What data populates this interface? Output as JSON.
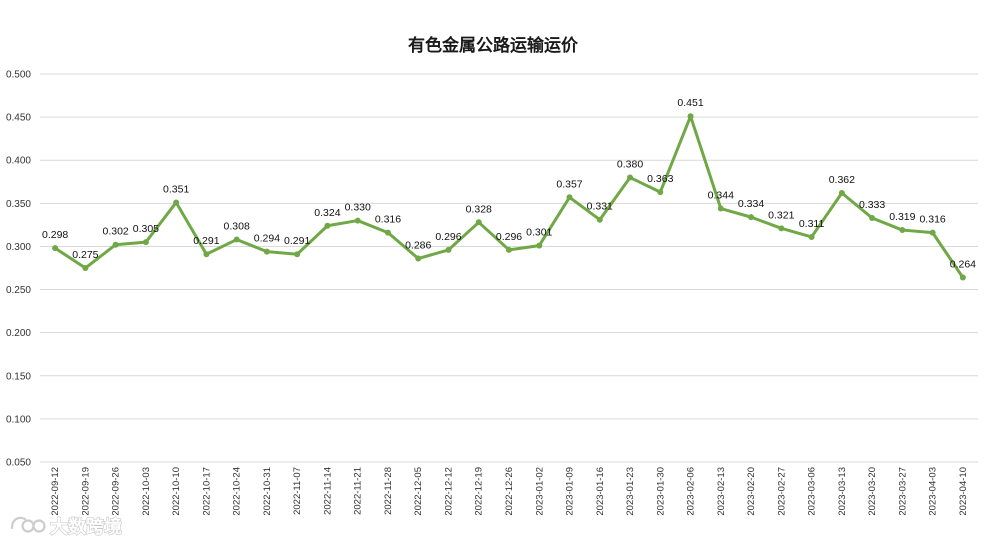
{
  "chart_data": {
    "type": "line",
    "title": "有色金属公路运输运价",
    "xlabel": "",
    "ylabel": "",
    "ylim": [
      0.05,
      0.5
    ],
    "yticks": [
      "0.050",
      "0.100",
      "0.150",
      "0.200",
      "0.250",
      "0.300",
      "0.350",
      "0.400",
      "0.450",
      "0.500"
    ],
    "grid": true,
    "legend": "none",
    "color": "#70a845",
    "x": [
      "2022-09-12",
      "2022-09-19",
      "2022-09-26",
      "2022-10-03",
      "2022-10-10",
      "2022-10-17",
      "2022-10-24",
      "2022-10-31",
      "2022-11-07",
      "2022-11-14",
      "2022-11-21",
      "2022-11-28",
      "2022-12-05",
      "2022-12-12",
      "2022-12-19",
      "2022-12-26",
      "2023-01-02",
      "2023-01-09",
      "2023-01-16",
      "2023-01-23",
      "2023-01-30",
      "2023-02-06",
      "2023-02-13",
      "2023-02-20",
      "2023-02-27",
      "2023-03-06",
      "2023-03-13",
      "2023-03-20",
      "2023-03-27",
      "2023-04-03",
      "2023-04-10"
    ],
    "values": [
      0.298,
      0.275,
      0.302,
      0.305,
      0.351,
      0.291,
      0.308,
      0.294,
      0.291,
      0.324,
      0.33,
      0.316,
      0.286,
      0.296,
      0.328,
      0.296,
      0.301,
      0.357,
      0.331,
      0.38,
      0.363,
      0.451,
      0.344,
      0.334,
      0.321,
      0.311,
      0.362,
      0.333,
      0.319,
      0.316,
      0.264
    ],
    "data_labels": [
      "0.298",
      "0.275",
      "0.302",
      "0.305",
      "0.351",
      "0.291",
      "0.308",
      "0.294",
      "0.291",
      "0.324",
      "0.330",
      "0.316",
      "0.286",
      "0.296",
      "0.328",
      "0.296",
      "0.301",
      "0.357",
      "0.331",
      "0.380",
      "0.363",
      "0.451",
      "0.344",
      "0.334",
      "0.321",
      "0.311",
      "0.362",
      "0.333",
      "0.319",
      "0.316",
      "0.264"
    ]
  },
  "watermark": {
    "text": "大数跨境",
    "icon": "brand-logo-icon"
  }
}
